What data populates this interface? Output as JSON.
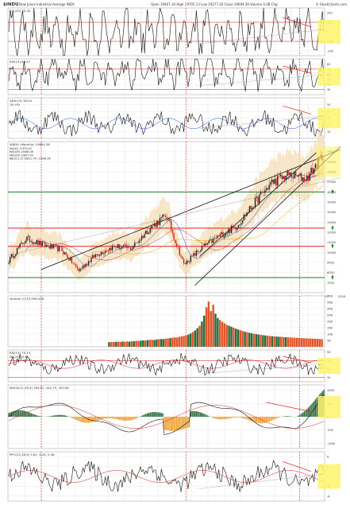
{
  "header": {
    "symbol": "$INDU",
    "description": "Dow Jones Industrial Average INDX",
    "quote": "Open 19467.34  High 19705.13  Low 19277.26  Close 19694.36  Volume 4.3B  Chg",
    "source": "© StockCharts.com"
  },
  "colors": {
    "up": "#222222",
    "down": "#d21f1f",
    "volume_up": "#2e6b3a",
    "volume_down": "#e2552b",
    "trend_red": "#e02020",
    "trend_black": "#111111",
    "support_green": "#1f7a2a",
    "highlight": "#fff36b",
    "band_fill": "#f3ddb0",
    "grid": "#d8d8d8"
  },
  "chart_data": [
    {
      "panel": "cci",
      "type": "line",
      "title": "CCI(20) 25.30",
      "yticks": [
        200,
        100,
        0,
        -100,
        -200
      ],
      "hlines": [
        100,
        -100
      ],
      "ylim": [
        -250,
        250
      ],
      "series": [
        {
          "name": "CCI(20)",
          "color": "#111111"
        }
      ]
    },
    {
      "panel": "rsi_top",
      "type": "line",
      "title": "RSI(14) 65.47",
      "yticks": [
        80,
        70,
        60,
        50,
        40,
        30
      ],
      "hlines": [
        70,
        30
      ],
      "ylim": [
        20,
        90
      ],
      "series": [
        {
          "name": "RSI(14)",
          "color": "#111111"
        }
      ]
    },
    {
      "panel": "adx",
      "type": "line",
      "title": "ADX(14) 16.04",
      "legend": "-DI  +DI",
      "yticks": [
        50,
        40,
        30,
        20,
        10
      ],
      "ylim": [
        0,
        60
      ],
      "series": [
        {
          "name": "ADX",
          "color": "#111111"
        },
        {
          "name": "DI",
          "color": "#1e4fd8"
        }
      ]
    },
    {
      "panel": "price",
      "type": "candlestick",
      "title": "$INDU (Monthly) 19694.36",
      "legend": [
        "MA(50) 17479.00",
        "MA(100) 14684.38",
        "MA(200) 10873.00",
        "BB(20,2.0) 19811.74 / 17096.06"
      ],
      "x": [
        1999,
        2000,
        2001,
        2002,
        2003,
        2004,
        2005,
        2006,
        2007,
        2008,
        2009,
        2010,
        2011,
        2012,
        2013,
        2014,
        2015,
        2016,
        2017
      ],
      "close": [
        9200,
        11400,
        10700,
        10300,
        8200,
        9800,
        10600,
        10400,
        12300,
        13700,
        8800,
        10400,
        11600,
        12600,
        14800,
        16900,
        17700,
        17300,
        19700
      ],
      "ylim": [
        6000,
        21000
      ],
      "yticks": [
        20000,
        19000,
        18000,
        17000,
        16000,
        15000,
        14000,
        13000,
        12000,
        11000,
        10000,
        9000,
        8000,
        7000
      ],
      "support_levels": [
        16000,
        12400,
        10600,
        7500
      ],
      "xlabels": [
        "1999",
        "2000",
        "2001",
        "2002",
        "2003",
        "2004",
        "2005",
        "2006",
        "2007",
        "2008",
        "2009",
        "2010",
        "2011",
        "2012",
        "2013",
        "2014",
        "2015",
        "2016",
        "2017",
        "2018"
      ]
    },
    {
      "panel": "volume",
      "type": "bar",
      "title": "Volume 4,333,958,208",
      "yticks": [
        "40B",
        "35B",
        "30B",
        "25B",
        "20B",
        "15B",
        "10B",
        "5B"
      ],
      "ylim": [
        0,
        40
      ],
      "values": [
        3.6,
        3.8,
        3.7,
        3.9,
        4.0,
        3.8,
        4.1,
        3.9,
        4.2,
        4.0,
        4.4,
        4.3,
        4.6,
        4.5,
        4.8,
        5.0,
        4.9,
        5.2,
        5.4,
        5.5,
        5.3,
        5.7,
        5.9,
        6.1,
        6.0,
        6.4,
        6.6,
        6.8,
        7.1,
        7.4,
        7.2,
        7.8,
        8.1,
        8.5,
        9.0,
        9.6,
        10.4,
        11.5,
        12.8,
        14.6,
        16.5,
        19.8,
        24.5,
        31.0,
        35.5,
        28.0,
        33.0,
        26.0,
        22.5,
        21.0,
        19.5,
        18.5,
        17.2,
        16.5,
        15.8,
        15.0,
        14.2,
        13.6,
        13.0,
        12.4,
        11.8,
        11.4,
        11.0,
        10.6,
        10.2,
        9.9,
        9.6,
        9.4,
        9.1,
        8.9,
        8.7,
        8.5,
        8.3,
        8.2,
        8.0,
        7.9,
        7.8,
        7.6,
        7.5,
        7.4,
        7.3,
        7.2,
        7.1,
        7.0,
        6.9,
        6.8,
        6.7,
        6.6,
        6.5,
        6.5,
        6.4,
        6.3,
        6.2,
        6.1,
        6.0
      ]
    },
    {
      "panel": "rsi_bottom",
      "type": "line",
      "title": "RSI(14) 75.14",
      "legend": "MA(20) 70.45",
      "yticks": [
        90,
        70,
        50,
        30
      ],
      "hlines": [
        70,
        30
      ],
      "ylim": [
        20,
        95
      ],
      "series": [
        {
          "name": "RSI(14)",
          "color": "#111111"
        },
        {
          "name": "MA(20)",
          "color": "#d21f1f"
        }
      ]
    },
    {
      "panel": "macd",
      "type": "bar",
      "title": "MACD(12,26,9) 764.81, 444.75, 320.06",
      "yticks": [
        1000,
        500,
        0,
        -500,
        -1000
      ],
      "ylim": [
        -1200,
        1200
      ],
      "series": [
        {
          "name": "MACD",
          "color": "#111111"
        },
        {
          "name": "Signal",
          "color": "#d21f1f"
        },
        {
          "name": "Histogram",
          "color": "#2e6b3a"
        }
      ]
    },
    {
      "panel": "ppo",
      "type": "line",
      "title": "PPO(12,26,9) 3.62, 3.24, 0.38",
      "yticks": [
        8,
        4,
        0,
        -4,
        -8
      ],
      "ylim": [
        -10,
        10
      ],
      "series": [
        {
          "name": "PPO",
          "color": "#111111"
        },
        {
          "name": "Signal",
          "color": "#d21f1f"
        },
        {
          "name": "Histogram",
          "color": "#2e6b3a"
        }
      ]
    }
  ]
}
